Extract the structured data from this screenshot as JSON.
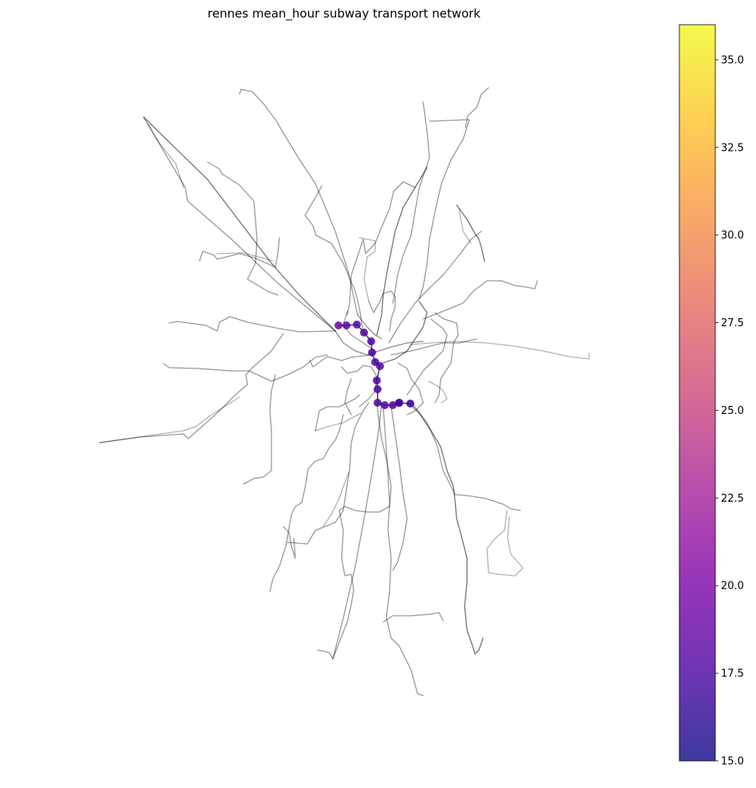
{
  "title": "rennes mean_hour subway transport network",
  "colorbar": {
    "colormap": "plasma",
    "alpha": 0.8,
    "min": 15.0,
    "max": 36.0,
    "ticks": [
      "15.0",
      "17.5",
      "20.0",
      "22.5",
      "25.0",
      "27.5",
      "30.0",
      "32.5",
      "35.0"
    ]
  },
  "network": {
    "edge_color": "#000000",
    "node_color_scale": "plasma"
  },
  "chart_data": {
    "type": "map",
    "title": "rennes mean_hour subway transport network",
    "color_metric_range": [
      15.0,
      36.0
    ],
    "subway_stations": [
      {
        "value": 19.2
      },
      {
        "value": 18.2
      },
      {
        "value": 18.0
      },
      {
        "value": 17.9
      },
      {
        "value": 17.8
      },
      {
        "value": 17.8
      },
      {
        "value": 17.7
      },
      {
        "value": 17.7
      },
      {
        "value": 17.6
      },
      {
        "value": 17.6
      },
      {
        "value": 17.6
      },
      {
        "value": 17.6
      },
      {
        "value": 17.5
      },
      {
        "value": 17.5
      },
      {
        "value": 17.4
      },
      {
        "value": 16.8
      }
    ]
  }
}
